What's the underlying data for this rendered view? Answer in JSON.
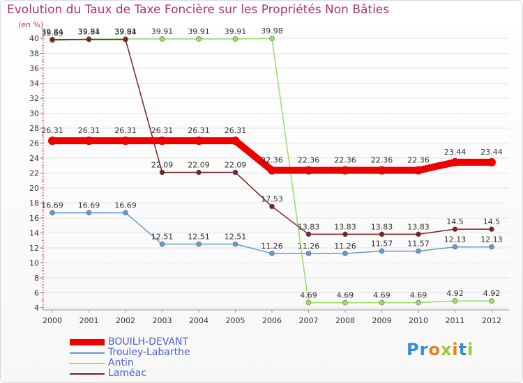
{
  "title": "Evolution du Taux de Taxe Foncière sur les Propriétés Non Bâties",
  "subtitle": "(en %)",
  "logo": {
    "text": "Proxiti"
  },
  "chart_data": {
    "type": "line",
    "title": "Evolution du Taux de Taxe Foncière sur les Propriétés Non Bâties",
    "ylabel": "(en %)",
    "xlabel": "",
    "categories": [
      "2000",
      "2001",
      "2002",
      "2003",
      "2004",
      "2005",
      "2006",
      "2007",
      "2008",
      "2009",
      "2010",
      "2011",
      "2012"
    ],
    "ylim": [
      4,
      40
    ],
    "yticks": [
      4,
      6,
      8,
      10,
      12,
      14,
      16,
      18,
      20,
      22,
      24,
      26,
      28,
      30,
      32,
      34,
      36,
      38,
      40
    ],
    "legend_position": "bottom-left",
    "series": [
      {
        "name": "BOUILH-DEVANT",
        "color": "#ee0000",
        "values": [
          26.31,
          26.31,
          26.31,
          26.31,
          26.31,
          26.31,
          22.36,
          22.36,
          22.36,
          22.36,
          22.36,
          23.44,
          23.44
        ],
        "labels": [
          "26.31",
          "26.31",
          "26.31",
          "26.31",
          "26.31",
          "26.31",
          "22.36",
          "22.36",
          "22.36",
          "22.36",
          "22.36",
          "23.44",
          "23.44"
        ]
      },
      {
        "name": "Trouley-Labarthe",
        "color": "#6699cc",
        "values": [
          16.69,
          16.69,
          16.69,
          12.51,
          12.51,
          12.51,
          11.26,
          11.26,
          11.26,
          11.57,
          11.57,
          12.13,
          12.13
        ],
        "labels": [
          "16.69",
          "16.69",
          "16.69",
          "12.51",
          "12.51",
          "12.51",
          "11.26",
          "11.26",
          "11.26",
          "11.57",
          "11.57",
          "12.13",
          "12.13"
        ]
      },
      {
        "name": "Antin",
        "color": "#99dd66",
        "values": [
          39.69,
          39.91,
          39.91,
          39.91,
          39.91,
          39.91,
          39.98,
          4.69,
          4.69,
          4.69,
          4.69,
          4.92,
          4.92
        ],
        "labels": [
          "39.69",
          "39.91",
          "39.91",
          "39.91",
          "39.91",
          "39.91",
          "39.98",
          "4.69",
          "4.69",
          "4.69",
          "4.69",
          "4.92",
          "4.92"
        ]
      },
      {
        "name": "Laméac",
        "color": "#772222",
        "values": [
          39.84,
          39.84,
          39.84,
          22.09,
          22.09,
          22.09,
          17.53,
          13.83,
          13.83,
          13.83,
          13.83,
          14.5,
          14.5
        ],
        "labels": [
          "39.84",
          "39.84",
          "39.84",
          "22.09",
          "22.09",
          "22.09",
          "17.53",
          "13.83",
          "13.83",
          "13.83",
          "13.83",
          "14.5",
          "14.5"
        ]
      }
    ]
  }
}
